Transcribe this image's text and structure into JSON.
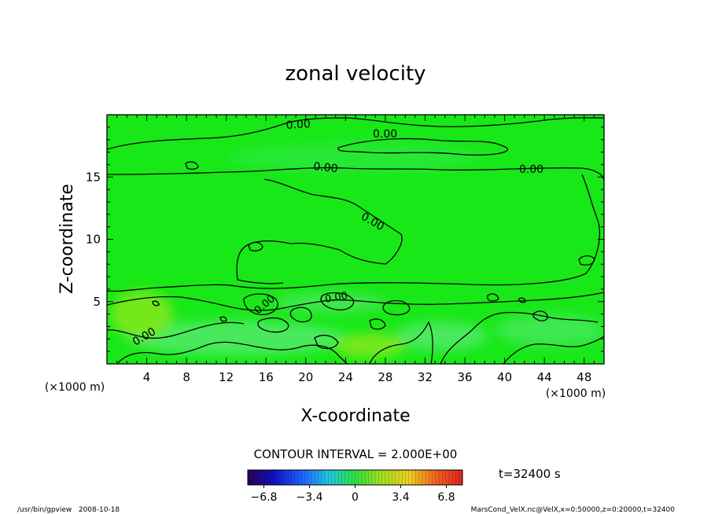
{
  "chart_data": {
    "type": "heatmap",
    "title": "zonal velocity",
    "xlabel": "X-coordinate",
    "ylabel": "Z-coordinate",
    "x_unit_label": "(×1000 m)",
    "y_unit_label": "(×1000 m)",
    "xlim": [
      0,
      50
    ],
    "ylim": [
      0,
      20
    ],
    "x_ticks": [
      4,
      8,
      12,
      16,
      20,
      24,
      28,
      32,
      36,
      40,
      44,
      48
    ],
    "y_ticks": [
      5,
      10,
      15
    ],
    "contour_interval_label": "CONTOUR INTERVAL = 2.000E+00",
    "contour_labels": [
      "0.00",
      "0.00",
      "0.00",
      "0.00",
      "0.00",
      "0.00",
      "0.00",
      "0.00"
    ],
    "colorbar": {
      "range": [
        -8,
        8
      ],
      "tick_values": [
        -6.8,
        -3.4,
        0,
        3.4,
        6.8
      ],
      "tick_labels": [
        "−6.8",
        "−3.4",
        "0",
        "3.4",
        "6.8"
      ]
    },
    "dominant_value_range": [
      -1,
      1
    ],
    "time_label": "t=32400 s",
    "footer_left": "/usr/bin/gpview   2008-10-18",
    "footer_right": "MarsCond_VelX.nc@VelX,x=0:50000,z=0:20000,t=32400"
  },
  "colors": {
    "field_main": "#18e818",
    "field_light": "#3fe94a",
    "field_yellow": "#9bea1a",
    "contour": "#000000"
  }
}
